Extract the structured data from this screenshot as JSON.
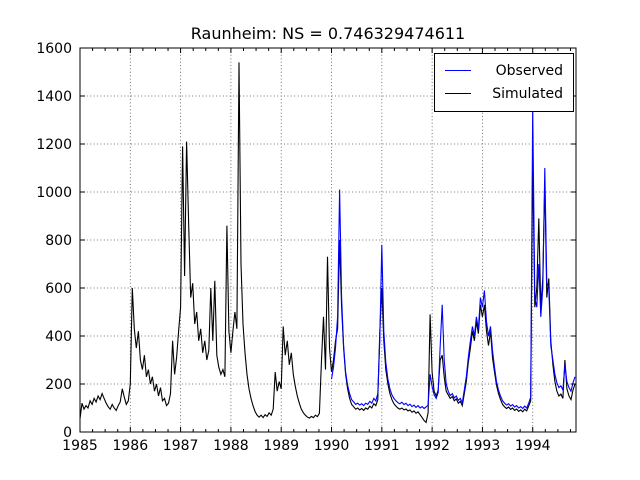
{
  "figure": {
    "title": "Raunheim: NS = 0.746329474611"
  },
  "chart_data": {
    "type": "line",
    "title": "Raunheim: NS = 0.746329474611",
    "station": "Raunheim",
    "ns_value": "0.746329474611",
    "xlim": [
      1985.0,
      1994.86
    ],
    "ylim": [
      0,
      1600
    ],
    "xticks": [
      1985,
      1986,
      1987,
      1988,
      1989,
      1990,
      1991,
      1992,
      1993,
      1994
    ],
    "yticks": [
      0,
      200,
      400,
      600,
      800,
      1000,
      1200,
      1400,
      1600
    ],
    "minor_tick_step_x": 0.25,
    "grid": "dotted, both axes",
    "legend": {
      "position": "upper-right",
      "entries": [
        {
          "label": "Observed",
          "color": "#0000ff"
        },
        {
          "label": "Simulated",
          "color": "#000000"
        }
      ]
    },
    "series": [
      {
        "name": "Observed",
        "color": "#0000ff",
        "start": 1990.0,
        "step": 0.04,
        "values": [
          220,
          270,
          350,
          480,
          1010,
          560,
          360,
          250,
          195,
          160,
          135,
          125,
          115,
          120,
          112,
          118,
          110,
          120,
          115,
          128,
          120,
          140,
          130,
          160,
          380,
          780,
          420,
          290,
          220,
          180,
          155,
          140,
          130,
          122,
          118,
          124,
          114,
          120,
          110,
          116,
          106,
          112,
          102,
          110,
          100,
          106,
          98,
          104,
          112,
          240,
          190,
          155,
          140,
          165,
          360,
          530,
          300,
          200,
          170,
          152,
          160,
          142,
          150,
          132,
          140,
          122,
          175,
          230,
          310,
          380,
          440,
          400,
          480,
          430,
          560,
          520,
          590,
          460,
          400,
          440,
          340,
          270,
          210,
          175,
          150,
          130,
          120,
          112,
          118,
          108,
          114,
          104,
          110,
          100,
          106,
          98,
          108,
          100,
          120,
          145,
          1350,
          560,
          520,
          700,
          480,
          600,
          1100,
          620,
          600,
          360,
          300,
          240,
          205,
          185,
          192,
          175,
          280,
          210,
          185,
          170,
          205,
          230
        ]
      },
      {
        "name": "Simulated",
        "color": "#000000",
        "start": 1985.0,
        "step": 0.04,
        "values": [
          55,
          120,
          95,
          110,
          100,
          130,
          115,
          140,
          125,
          150,
          135,
          160,
          140,
          120,
          105,
          95,
          115,
          100,
          90,
          110,
          125,
          180,
          145,
          115,
          130,
          200,
          600,
          430,
          350,
          420,
          300,
          260,
          320,
          230,
          260,
          200,
          230,
          170,
          200,
          150,
          185,
          130,
          140,
          110,
          120,
          160,
          380,
          240,
          310,
          420,
          520,
          1190,
          650,
          1210,
          860,
          560,
          620,
          450,
          500,
          380,
          430,
          330,
          380,
          300,
          340,
          600,
          380,
          630,
          320,
          270,
          240,
          260,
          230,
          860,
          420,
          330,
          420,
          500,
          430,
          1540,
          700,
          450,
          330,
          240,
          180,
          140,
          110,
          85,
          70,
          62,
          70,
          60,
          72,
          65,
          80,
          70,
          95,
          250,
          170,
          210,
          180,
          440,
          320,
          380,
          280,
          330,
          240,
          190,
          150,
          120,
          95,
          80,
          70,
          62,
          58,
          65,
          60,
          70,
          64,
          78,
          300,
          480,
          260,
          730,
          350,
          250,
          300,
          380,
          430,
          800,
          520,
          350,
          240,
          180,
          140,
          115,
          105,
          95,
          100,
          92,
          98,
          90,
          100,
          95,
          108,
          100,
          118,
          110,
          135,
          420,
          600,
          380,
          260,
          200,
          160,
          135,
          118,
          108,
          100,
          95,
          100,
          92,
          96,
          88,
          92,
          82,
          88,
          78,
          84,
          72,
          60,
          48,
          40,
          80,
          490,
          250,
          170,
          150,
          175,
          300,
          320,
          230,
          170,
          155,
          140,
          148,
          130,
          138,
          120,
          128,
          110,
          160,
          210,
          290,
          350,
          420,
          380,
          460,
          410,
          530,
          480,
          530,
          420,
          360,
          420,
          310,
          250,
          195,
          160,
          135,
          115,
          105,
          98,
          104,
          94,
          100,
          90,
          96,
          86,
          92,
          84,
          95,
          88,
          108,
          130,
          1150,
          520,
          600,
          890,
          520,
          640,
          1040,
          560,
          640,
          380,
          280,
          210,
          170,
          150,
          158,
          140,
          300,
          180,
          150,
          135,
          175,
          200
        ]
      }
    ]
  }
}
